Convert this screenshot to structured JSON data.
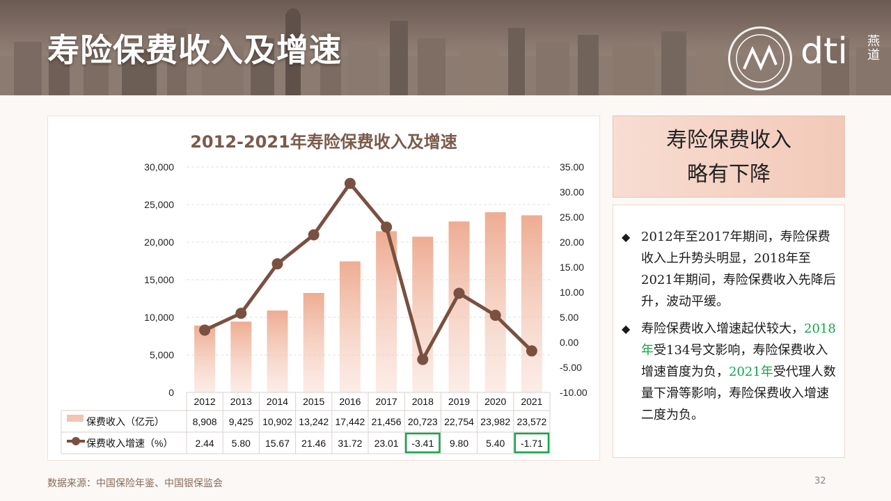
{
  "header": {
    "title": "寿险保费收入及增速",
    "logo_text": "dti",
    "logo_side": "燕道"
  },
  "chart_data": {
    "type": "bar",
    "title": "2012-2021年寿险保费收入及增速",
    "categories": [
      "2012",
      "2013",
      "2014",
      "2015",
      "2016",
      "2017",
      "2018",
      "2019",
      "2020",
      "2021"
    ],
    "series": [
      {
        "name": "保费收入（亿元）",
        "type": "bar",
        "axis": "left",
        "values": [
          8908,
          9425,
          10902,
          13242,
          17442,
          21456,
          20723,
          22754,
          23982,
          23572
        ],
        "labels": [
          "8,908",
          "9,425",
          "10,902",
          "13,242",
          "17,442",
          "21,456",
          "20,723",
          "22,754",
          "23,982",
          "23,572"
        ],
        "color": "#f0b49c"
      },
      {
        "name": "保费收入增速（%）",
        "type": "line",
        "axis": "right",
        "values": [
          2.44,
          5.8,
          15.67,
          21.46,
          31.72,
          23.01,
          -3.41,
          9.8,
          5.4,
          -1.71
        ],
        "labels": [
          "2.44",
          "5.80",
          "15.67",
          "21.46",
          "31.72",
          "23.01",
          "-3.41",
          "9.80",
          "5.40",
          "-1.71"
        ],
        "color": "#7a5040"
      }
    ],
    "ylim_left": [
      0,
      30000
    ],
    "yticks_left": [
      "0",
      "5,000",
      "10,000",
      "15,000",
      "20,000",
      "25,000",
      "30,000"
    ],
    "ylim_right": [
      -10,
      35
    ],
    "yticks_right": [
      "-10.00",
      "-5.00",
      "0.00",
      "5.00",
      "10.00",
      "15.00",
      "20.00",
      "25.00",
      "30.00",
      "35.00"
    ],
    "highlighted_cells": [
      "2018",
      "2021"
    ],
    "highlight_color": "#16a34a",
    "grid": true,
    "legend": "table-below"
  },
  "callout": {
    "line1": "寿险保费收入",
    "line2": "略有下降"
  },
  "notes": {
    "bullet_mark": "◆",
    "p1": "2012年至2017年期间，寿险保费收入上升势头明显，2018年至2021年期间，寿险保费收入先降后升，波动平缓。",
    "p2_a": "寿险保费收入增速起伏较大，",
    "p2_hl1": "2018年",
    "p2_b": "受134号文影响，寿险保费收入增速首度为负，",
    "p2_hl2": "2021年",
    "p2_c": "受代理人数量下滑等影响，寿险保费收入增速二度为负。"
  },
  "footer": {
    "source": "数据来源：中国保险年鉴、中国银保监会",
    "page": "32"
  }
}
